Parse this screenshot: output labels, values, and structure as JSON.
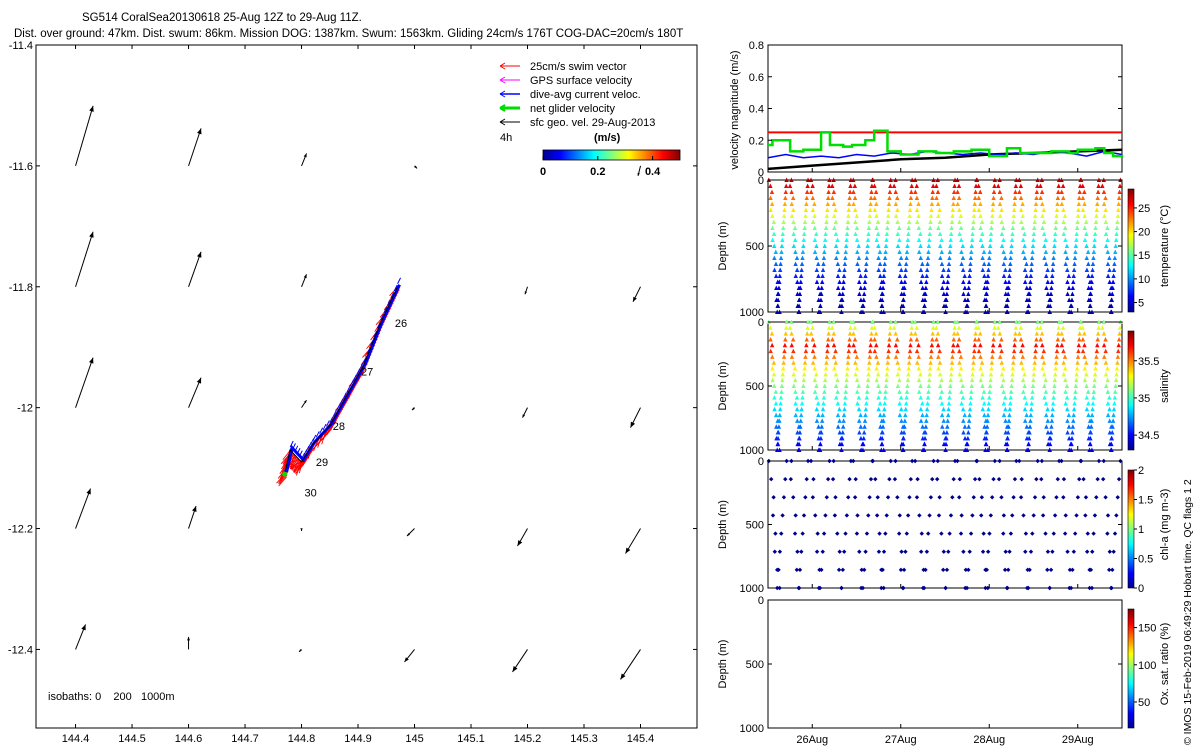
{
  "header": {
    "line1": "SG514 CoralSea20130618 25-Aug 12Z to 29-Aug 11Z.",
    "line2": "Dist. over ground: 47km. Dist. swum: 86km. Mission DOG: 1387km. Swum: 1563km. Gliding 24cm/s 176T COG-DAC=20cm/s 180T"
  },
  "colors": {
    "swim": "#ff0000",
    "gps": "#ff00ff",
    "dac": "#0000ff",
    "net": "#00dd00",
    "sfc": "#000000"
  },
  "chart_data": [
    {
      "type": "scatter",
      "name": "track-map",
      "xlim": [
        144.33,
        145.5
      ],
      "ylim": [
        -12.53,
        -11.4
      ],
      "xticks": [
        "144.4",
        "144.5",
        "144.6",
        "144.7",
        "144.8",
        "144.9",
        "145",
        "145.1",
        "145.2",
        "145.3",
        "145.4"
      ],
      "xtick_values": [
        144.4,
        144.5,
        144.6,
        144.7,
        144.8,
        144.9,
        145.0,
        145.1,
        145.2,
        145.3,
        145.4
      ],
      "yticks": [
        "-11.4",
        "-11.6",
        "-11.8",
        "-12",
        "-12.2",
        "-12.4"
      ],
      "ytick_values": [
        -11.4,
        -11.6,
        -11.8,
        -12.0,
        -12.2,
        -12.4
      ],
      "legend": [
        {
          "label": "25cm/s swim vector",
          "key": "swim"
        },
        {
          "label": "GPS surface velocity",
          "key": "gps"
        },
        {
          "label": "dive-avg current veloc.",
          "key": "dac"
        },
        {
          "label": "net glider velocity",
          "key": "net"
        },
        {
          "label": "sfc geo. vel. 29-Aug-2013",
          "key": "sfc"
        }
      ],
      "legend_position": "top-right",
      "time_step_label": "4h",
      "colorbar": {
        "title": "(m/s)",
        "ticks": [
          "0",
          "0.2",
          "0.4"
        ],
        "tick_values": [
          0,
          0.2,
          0.4
        ],
        "range": [
          0,
          0.5
        ]
      },
      "isobaths_label": "isobaths: 0    200   1000m",
      "track": [
        {
          "lon": 144.77,
          "lat": -12.11
        },
        {
          "lon": 144.78,
          "lat": -12.07
        },
        {
          "lon": 144.8,
          "lat": -12.09
        },
        {
          "lon": 144.82,
          "lat": -12.06
        },
        {
          "lon": 144.85,
          "lat": -12.03
        },
        {
          "lon": 144.88,
          "lat": -11.98
        },
        {
          "lon": 144.91,
          "lat": -11.93
        },
        {
          "lon": 144.94,
          "lat": -11.86
        },
        {
          "lon": 144.97,
          "lat": -11.8
        }
      ],
      "day_labels": [
        {
          "label": "26",
          "lon": 144.96,
          "lat": -11.86
        },
        {
          "label": "27",
          "lon": 144.9,
          "lat": -11.94
        },
        {
          "label": "28",
          "lon": 144.85,
          "lat": -12.03
        },
        {
          "label": "29",
          "lon": 144.82,
          "lat": -12.09
        },
        {
          "label": "30",
          "lon": 144.8,
          "lat": -12.14
        }
      ],
      "surface_velocity_grid": {
        "lons": [
          144.4,
          144.6,
          144.8,
          145.0,
          145.2,
          145.4
        ],
        "lats": [
          -11.6,
          -11.8,
          -12.0,
          -12.2,
          -12.4
        ],
        "u": [
          [
            0.07,
            0.05,
            0.02,
            0.01,
            0.0,
            -0.01
          ],
          [
            0.07,
            0.05,
            0.02,
            0.0,
            -0.01,
            -0.03
          ],
          [
            0.07,
            0.05,
            0.02,
            -0.01,
            -0.02,
            -0.04
          ],
          [
            0.06,
            0.03,
            0.0,
            -0.03,
            -0.04,
            -0.06
          ],
          [
            0.04,
            0.0,
            -0.01,
            -0.04,
            -0.06,
            -0.08
          ]
        ],
        "v": [
          [
            0.24,
            0.15,
            0.05,
            -0.01,
            0.0,
            -0.04
          ],
          [
            0.22,
            0.14,
            0.05,
            0.0,
            -0.03,
            -0.06
          ],
          [
            0.2,
            0.12,
            0.03,
            -0.01,
            -0.04,
            -0.08
          ],
          [
            0.16,
            0.09,
            -0.01,
            -0.03,
            -0.07,
            -0.1
          ],
          [
            0.1,
            0.05,
            -0.01,
            -0.05,
            -0.09,
            -0.12
          ]
        ]
      }
    },
    {
      "type": "line",
      "name": "velocity-timeseries",
      "ylabel": "velocity magnitude (m/s)",
      "ylim": [
        0,
        0.8
      ],
      "yticks": [
        "0",
        "0.2",
        "0.4",
        "0.6",
        "0.8"
      ],
      "ytick_values": [
        0,
        0.2,
        0.4,
        0.6,
        0.8
      ],
      "xlim": [
        25.5,
        29.5
      ],
      "series": [
        {
          "key": "swim",
          "x": [
            25.5,
            29.5
          ],
          "y": [
            0.25,
            0.25
          ]
        },
        {
          "key": "net",
          "x": [
            25.5,
            25.55,
            25.75,
            25.9,
            26.1,
            26.2,
            26.35,
            26.45,
            26.6,
            26.7,
            26.85,
            27.0,
            27.2,
            27.4,
            27.6,
            27.8,
            28.0,
            28.2,
            28.35,
            28.5,
            28.7,
            28.9,
            29.0,
            29.1,
            29.2,
            29.3,
            29.4,
            29.5
          ],
          "y": [
            0.17,
            0.2,
            0.13,
            0.14,
            0.25,
            0.17,
            0.16,
            0.17,
            0.2,
            0.26,
            0.13,
            0.11,
            0.13,
            0.12,
            0.13,
            0.14,
            0.1,
            0.15,
            0.12,
            0.12,
            0.13,
            0.12,
            0.14,
            0.14,
            0.15,
            0.12,
            0.1,
            0.09
          ]
        },
        {
          "key": "dac",
          "x": [
            25.5,
            25.7,
            25.9,
            26.1,
            26.3,
            26.5,
            26.7,
            26.9,
            27.1,
            27.3,
            27.5,
            27.7,
            27.9,
            28.1,
            28.3,
            28.5,
            28.7,
            28.9,
            29.1,
            29.3,
            29.5
          ],
          "y": [
            0.09,
            0.11,
            0.09,
            0.1,
            0.09,
            0.11,
            0.1,
            0.12,
            0.11,
            0.13,
            0.12,
            0.11,
            0.12,
            0.11,
            0.12,
            0.11,
            0.13,
            0.12,
            0.1,
            0.13,
            0.11
          ]
        },
        {
          "key": "sfc",
          "x": [
            25.5,
            26.0,
            26.5,
            27.0,
            27.5,
            28.0,
            28.5,
            29.0,
            29.5
          ],
          "y": [
            0.02,
            0.04,
            0.06,
            0.08,
            0.09,
            0.11,
            0.12,
            0.13,
            0.14
          ]
        }
      ]
    },
    {
      "type": "scatter",
      "name": "temperature-section",
      "ylabel": "Depth (m)",
      "ylim": [
        1000,
        0
      ],
      "yticks": [
        "0",
        "500",
        "1000"
      ],
      "ytick_values": [
        0,
        500,
        1000
      ],
      "cbar_label": "temperature (°C)",
      "cbar_ticks": [
        "5",
        "10",
        "15",
        "20",
        "25"
      ],
      "cbar_tick_values": [
        5,
        10,
        15,
        20,
        25
      ],
      "cbar_range": [
        3,
        29
      ],
      "profile_top_m": 0,
      "profile_bottom_m": 1000,
      "surface_value": 28,
      "deep_value": 4
    },
    {
      "type": "scatter",
      "name": "salinity-section",
      "ylabel": "Depth (m)",
      "ylim": [
        1000,
        0
      ],
      "yticks": [
        "0",
        "500",
        "1000"
      ],
      "ytick_values": [
        0,
        500,
        1000
      ],
      "cbar_label": "salinity",
      "cbar_ticks": [
        "34.5",
        "35",
        "35.5"
      ],
      "cbar_tick_values": [
        34.5,
        35,
        35.5
      ],
      "cbar_range": [
        34.3,
        35.9
      ],
      "profile_top_m": 0,
      "profile_bottom_m": 1000,
      "surface_value": 35.1,
      "max_value": 35.75,
      "max_depth_m": 200,
      "deep_value": 34.45
    },
    {
      "type": "scatter",
      "name": "chlorophyll-section",
      "ylabel": "Depth (m)",
      "ylim": [
        1000,
        0
      ],
      "yticks": [
        "0",
        "500",
        "1000"
      ],
      "ytick_values": [
        0,
        500,
        1000
      ],
      "cbar_label": "chl-a (mg m-3)",
      "cbar_ticks": [
        "0",
        "0.5",
        "1",
        "1.5",
        "2"
      ],
      "cbar_tick_values": [
        0,
        0.5,
        1,
        1.5,
        2
      ],
      "cbar_range": [
        0,
        2
      ],
      "profile_top_m": 0,
      "profile_bottom_m": 1000,
      "value": 0.03
    },
    {
      "type": "scatter",
      "name": "oxygen-section",
      "ylabel": "Depth (m)",
      "ylim": [
        1000,
        0
      ],
      "yticks": [
        "0",
        "500",
        "1000"
      ],
      "ytick_values": [
        0,
        500,
        1000
      ],
      "cbar_label": "Ox. sat. ratio (%)",
      "cbar_ticks": [
        "50",
        "100",
        "150"
      ],
      "cbar_tick_values": [
        50,
        100,
        150
      ],
      "cbar_range": [
        15,
        175
      ],
      "empty": true
    }
  ],
  "time_axis": {
    "xlim": [
      25.5,
      29.5
    ],
    "ticks": [
      "26Aug",
      "27Aug",
      "28Aug",
      "29Aug"
    ],
    "tick_values": [
      26,
      27,
      28,
      29
    ],
    "dives": 17
  },
  "footer_vertical": "© IMOS 15-Feb-2019 06:49:29 Hobart time. QC flags 1  2"
}
